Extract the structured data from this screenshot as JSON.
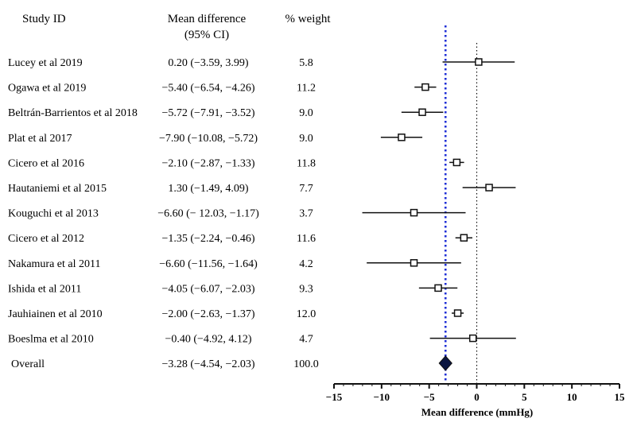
{
  "chart_data": {
    "type": "forest",
    "headers": {
      "study": "Study ID",
      "effect_line1": "Mean difference",
      "effect_line2": "(95% CI)",
      "weight": "% weight"
    },
    "studies": [
      {
        "name": "Lucey et al 2019",
        "ci_text": "0.20 (−3.59, 3.99)",
        "weight": "5.8",
        "mean": 0.2,
        "lo": -3.59,
        "hi": 3.99
      },
      {
        "name": "Ogawa et al 2019",
        "ci_text": "−5.40 (−6.54, −4.26)",
        "weight": "11.2",
        "mean": -5.4,
        "lo": -6.54,
        "hi": -4.26
      },
      {
        "name": "Beltrán-Barrientos et al 2018",
        "ci_text": "−5.72 (−7.91, −3.52)",
        "weight": "9.0",
        "mean": -5.72,
        "lo": -7.91,
        "hi": -3.52
      },
      {
        "name": "Plat et al 2017",
        "ci_text": "−7.90 (−10.08, −5.72)",
        "weight": "9.0",
        "mean": -7.9,
        "lo": -10.08,
        "hi": -5.72
      },
      {
        "name": "Cicero et al 2016",
        "ci_text": "−2.10 (−2.87, −1.33)",
        "weight": "11.8",
        "mean": -2.1,
        "lo": -2.87,
        "hi": -1.33
      },
      {
        "name": "Hautaniemi et al 2015",
        "ci_text": "1.30 (−1.49, 4.09)",
        "weight": "7.7",
        "mean": 1.3,
        "lo": -1.49,
        "hi": 4.09
      },
      {
        "name": "Kouguchi et al 2013",
        "ci_text": "−6.60 (− 12.03, −1.17)",
        "weight": "3.7",
        "mean": -6.6,
        "lo": -12.03,
        "hi": -1.17
      },
      {
        "name": "Cicero et al 2012",
        "ci_text": "−1.35 (−2.24, −0.46)",
        "weight": "11.6",
        "mean": -1.35,
        "lo": -2.24,
        "hi": -0.46
      },
      {
        "name": "Nakamura et al 2011",
        "ci_text": "−6.60 (−11.56, −1.64)",
        "weight": "4.2",
        "mean": -6.6,
        "lo": -11.56,
        "hi": -1.64
      },
      {
        "name": "Ishida et al 2011",
        "ci_text": "−4.05 (−6.07, −2.03)",
        "weight": "9.3",
        "mean": -4.05,
        "lo": -6.07,
        "hi": -2.03
      },
      {
        "name": "Jauhiainen et al 2010",
        "ci_text": "−2.00 (−2.63, −1.37)",
        "weight": "12.0",
        "mean": -2.0,
        "lo": -2.63,
        "hi": -1.37
      },
      {
        "name": "Boeslma et al 2010",
        "ci_text": "−0.40 (−4.92, 4.12)",
        "weight": "4.7",
        "mean": -0.4,
        "lo": -4.92,
        "hi": 4.12
      }
    ],
    "overall": {
      "name": "Overall",
      "ci_text": "−3.28 (−4.54, −2.03)",
      "weight": "100.0",
      "mean": -3.28,
      "lo": -4.54,
      "hi": -2.03
    },
    "x_ticks": [
      {
        "value": -15,
        "label": "−15"
      },
      {
        "value": -10,
        "label": "−10"
      },
      {
        "value": -5,
        "label": "−5"
      },
      {
        "value": 0,
        "label": "0"
      },
      {
        "value": 5,
        "label": "5"
      },
      {
        "value": 10,
        "label": "10"
      },
      {
        "value": 15,
        "label": "15"
      }
    ],
    "xlim": [
      -15,
      15
    ],
    "xlabel": "Mean difference (mmHg)",
    "null_line": 0,
    "colors": {
      "ink": "#111111",
      "overall_line": "#1f2fd6",
      "diamond": "#0c1640"
    }
  }
}
